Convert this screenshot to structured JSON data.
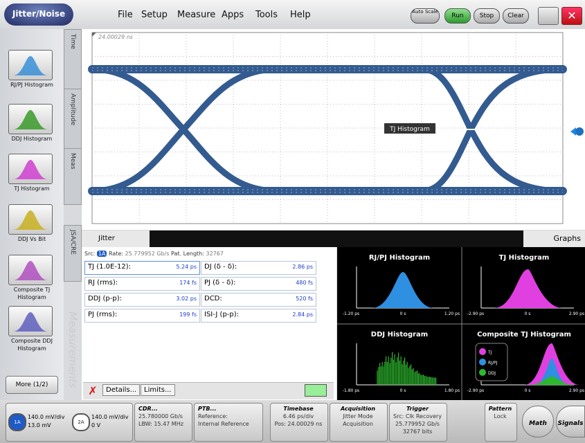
{
  "menu": {
    "logo": "Jitter/Noise",
    "items": [
      "File",
      "Setup",
      "Measure",
      "Apps",
      "Tools",
      "Help"
    ],
    "buttons": [
      "Auto Scale",
      "Run",
      "Stop",
      "Clear"
    ]
  },
  "sidebar": {
    "items": [
      "RJ/PJ Histogram",
      "DDJ Histogram",
      "TJ Histogram",
      "DDJ Vs Bit",
      "Composite TJ Histogram",
      "Composite DDJ Histogram"
    ],
    "more": "More (1/2)"
  },
  "tabs": [
    "Time",
    "Amplitude",
    "Meas",
    "JSA/CRE"
  ],
  "watermark": "Measurements",
  "eye": {
    "timestamp": "24.00029 ns",
    "marker": "TJ Histogram"
  },
  "panel": {
    "tab": "Jitter",
    "graphs_tab": "Graphs",
    "src_label": "Src:",
    "src": "1A",
    "rate_label": "Rate:",
    "rate": "25.779952 Gb/s",
    "pat_label": "Pat. Length:",
    "pat": "32767",
    "rows": [
      [
        "TJ (1.0E-12):",
        "5.24 ps",
        "DJ (δ - δ):",
        "2.86 ps"
      ],
      [
        "RJ (rms):",
        "174 fs",
        "PJ (δ - δ):",
        "480 fs"
      ],
      [
        "DDJ (p-p):",
        "3.02 ps",
        "DCD:",
        "520 fs"
      ],
      [
        "PJ (rms):",
        "199 fs",
        "ISI-J (p-p):",
        "2.84 ps"
      ]
    ],
    "buttons": [
      "Details...",
      "Limits..."
    ]
  },
  "graphs": [
    {
      "title": "RJ/PJ Histogram",
      "ticks": [
        "-1.20 ps",
        "0 s",
        "1.20 ps"
      ]
    },
    {
      "title": "TJ Histogram",
      "ticks": [
        "-2.90 ps",
        "0 s",
        "2.90 ps"
      ]
    },
    {
      "title": "DDJ Histogram",
      "ticks": [
        "-1.80 ps",
        "0 s",
        "1.80 ps"
      ]
    },
    {
      "title": "Composite TJ Histogram",
      "ticks": [
        "-2.90 ps",
        "0 s",
        "2.90 ps"
      ],
      "legend": [
        "TJ",
        "RJ/PJ",
        "DDJ"
      ]
    }
  ],
  "status": {
    "ch1": {
      "badge": "1A",
      "scale": "140.0 mV/div",
      "offset": "13.0 mV"
    },
    "ch2": {
      "badge": "2A",
      "scale": "140.0 mV/div",
      "offset": "0 V"
    },
    "cdr": [
      "CDR...",
      "25.780000 Gb/s",
      "LBW: 15.47 MHz"
    ],
    "ptb": [
      "PTB...",
      "Reference:",
      "Internal Reference"
    ],
    "timebase": [
      "Timebase",
      "6.46 ps/div",
      "Pos: 24.00029 ns"
    ],
    "acquisition": [
      "Acquisition",
      "Jitter Mode",
      "Acquisition"
    ],
    "trigger": [
      "Trigger",
      "Src: Clk Recovery",
      "25.779952 Gb/s",
      "32767 bits"
    ],
    "pattern": [
      "Pattern",
      "Lock"
    ],
    "math": "Math",
    "signals": "Signals"
  }
}
